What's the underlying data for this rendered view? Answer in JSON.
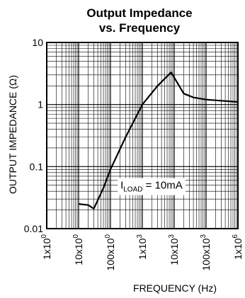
{
  "chart_data": {
    "type": "line",
    "title_line1": "Output Impedance",
    "title_line2": "vs. Frequency",
    "xlabel": "FREQUENCY (Hz)",
    "ylabel": "OUTPUT IMPEDANCE (Ω)",
    "x_scale": "log",
    "y_scale": "log",
    "xlim": [
      1,
      1000000
    ],
    "ylim": [
      0.01,
      10
    ],
    "grid": true,
    "x_ticks": [
      {
        "value": 1,
        "label": "1x10",
        "exp": "0"
      },
      {
        "value": 10,
        "label": "10x10",
        "exp": "0"
      },
      {
        "value": 100,
        "label": "100x10",
        "exp": "0"
      },
      {
        "value": 1000,
        "label": "1x10",
        "exp": "3"
      },
      {
        "value": 10000,
        "label": "10x10",
        "exp": "3"
      },
      {
        "value": 100000,
        "label": "100x10",
        "exp": "3"
      },
      {
        "value": 1000000,
        "label": "1x10",
        "exp": "6"
      }
    ],
    "y_ticks": [
      {
        "value": 10,
        "label": "10"
      },
      {
        "value": 1,
        "label": "1"
      },
      {
        "value": 0.1,
        "label": "0.1"
      },
      {
        "value": 0.01,
        "label": "0.01"
      }
    ],
    "annotation": {
      "prefix": "I",
      "sub": "LOAD",
      "suffix": " = 10mA"
    },
    "series": [
      {
        "x": [
          10,
          20,
          30,
          60,
          100,
          300,
          1000,
          3000,
          8000,
          20000,
          40000,
          100000,
          300000,
          1000000
        ],
        "y": [
          0.025,
          0.024,
          0.021,
          0.045,
          0.09,
          0.3,
          1.0,
          2.0,
          3.3,
          1.5,
          1.3,
          1.2,
          1.15,
          1.1
        ]
      }
    ]
  }
}
